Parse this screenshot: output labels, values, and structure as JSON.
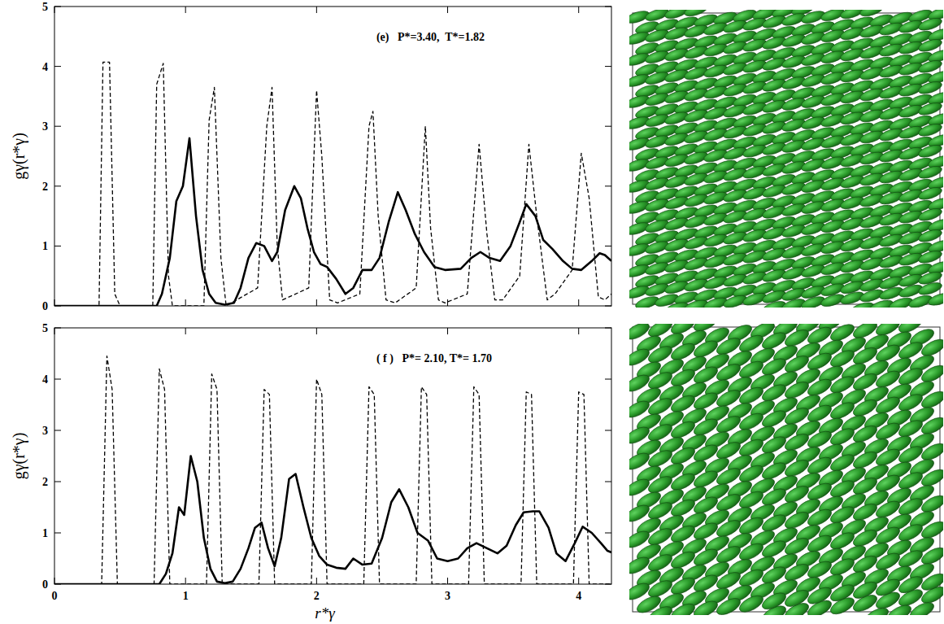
{
  "chart_data": [
    {
      "type": "line",
      "title": "(e)   P*=3.40,  T*=1.82",
      "ylabel": "gγ(r*γ)",
      "xlim": [
        0,
        4.25
      ],
      "ylim": [
        0,
        5
      ],
      "xticks": [
        0,
        1,
        2,
        3,
        4
      ],
      "yticks": [
        0,
        1,
        2,
        3,
        4,
        5
      ],
      "tick_labels": "y",
      "series": [
        {
          "color": "#000000",
          "line_style": "dashed",
          "x": [
            0,
            0.34,
            0.37,
            0.42,
            0.46,
            0.5,
            0.75,
            0.78,
            0.83,
            0.87,
            0.9,
            1.14,
            1.18,
            1.22,
            1.27,
            1.31,
            1.55,
            1.62,
            1.66,
            1.7,
            1.74,
            1.94,
            2.0,
            2.04,
            2.1,
            2.16,
            2.33,
            2.4,
            2.43,
            2.47,
            2.53,
            2.6,
            2.76,
            2.83,
            2.87,
            2.93,
            2.98,
            3.15,
            3.24,
            3.3,
            3.36,
            3.42,
            3.55,
            3.62,
            3.68,
            3.76,
            3.82,
            3.95,
            4.02,
            4.08,
            4.15,
            4.2,
            4.25
          ],
          "values": [
            0,
            0,
            4.07,
            4.07,
            0.2,
            0,
            0,
            3.7,
            4.05,
            0.5,
            0,
            0,
            3.1,
            3.65,
            0.8,
            0,
            0.3,
            3.0,
            3.65,
            1.0,
            0.1,
            0.3,
            3.6,
            2.5,
            0.1,
            0.05,
            0.2,
            3.0,
            3.25,
            1.5,
            0.1,
            0.05,
            0.3,
            3.0,
            1.3,
            0.1,
            0.05,
            0.2,
            2.7,
            1.2,
            0.1,
            0.1,
            0.5,
            2.7,
            1.5,
            0.1,
            0.2,
            0.6,
            2.55,
            1.8,
            0.15,
            0.1,
            0.2
          ]
        },
        {
          "color": "#000000",
          "line_style": "solid",
          "x": [
            0,
            0.78,
            0.82,
            0.88,
            0.93,
            0.98,
            1.03,
            1.08,
            1.13,
            1.18,
            1.23,
            1.3,
            1.37,
            1.42,
            1.48,
            1.54,
            1.6,
            1.66,
            1.7,
            1.76,
            1.83,
            1.88,
            1.93,
            1.98,
            2.03,
            2.08,
            2.15,
            2.22,
            2.28,
            2.35,
            2.42,
            2.48,
            2.55,
            2.62,
            2.68,
            2.75,
            2.82,
            2.9,
            2.98,
            3.1,
            3.18,
            3.25,
            3.32,
            3.4,
            3.48,
            3.55,
            3.6,
            3.67,
            3.73,
            3.8,
            3.88,
            3.95,
            4.02,
            4.1,
            4.16,
            4.2,
            4.25
          ],
          "values": [
            0,
            0,
            0.2,
            0.8,
            1.75,
            2.0,
            2.8,
            1.5,
            0.6,
            0.2,
            0.05,
            0.02,
            0.05,
            0.3,
            0.8,
            1.05,
            1.0,
            0.75,
            0.9,
            1.6,
            2.0,
            1.8,
            1.3,
            0.9,
            0.7,
            0.65,
            0.45,
            0.2,
            0.3,
            0.6,
            0.6,
            0.8,
            1.4,
            1.9,
            1.6,
            1.2,
            0.9,
            0.65,
            0.6,
            0.62,
            0.8,
            0.9,
            0.8,
            0.75,
            1.0,
            1.4,
            1.7,
            1.5,
            1.1,
            0.95,
            0.75,
            0.62,
            0.6,
            0.75,
            0.88,
            0.85,
            0.75
          ]
        }
      ]
    },
    {
      "type": "line",
      "title": "( f )   P*= 2.10, T*= 1.70",
      "xlabel": "r*γ",
      "ylabel": "gγ(r*γ)",
      "xlim": [
        0,
        4.25
      ],
      "ylim": [
        0,
        5
      ],
      "xticks": [
        0,
        1,
        2,
        3,
        4
      ],
      "yticks": [
        0,
        1,
        2,
        3,
        4,
        5
      ],
      "series": [
        {
          "color": "#000000",
          "line_style": "dashed",
          "x": [
            0,
            0.36,
            0.4,
            0.44,
            0.48,
            0.76,
            0.8,
            0.84,
            0.88,
            1.16,
            1.2,
            1.24,
            1.28,
            1.56,
            1.6,
            1.64,
            1.68,
            1.96,
            2.0,
            2.04,
            2.08,
            2.36,
            2.4,
            2.44,
            2.48,
            2.76,
            2.8,
            2.84,
            2.88,
            3.16,
            3.2,
            3.24,
            3.28,
            3.56,
            3.6,
            3.64,
            3.68,
            3.96,
            4.0,
            4.04,
            4.08,
            4.25
          ],
          "values": [
            0,
            0,
            4.45,
            3.8,
            0,
            0,
            4.2,
            3.8,
            0,
            0,
            4.1,
            3.8,
            0,
            0,
            3.8,
            3.7,
            0,
            0,
            4.0,
            3.7,
            0,
            0,
            3.85,
            3.7,
            0,
            0,
            3.85,
            3.7,
            0,
            0,
            3.85,
            3.7,
            0,
            0,
            3.75,
            3.7,
            0,
            0,
            3.75,
            3.7,
            0,
            0
          ]
        },
        {
          "color": "#000000",
          "line_style": "solid",
          "x": [
            0,
            0.8,
            0.85,
            0.9,
            0.95,
            0.99,
            1.04,
            1.09,
            1.14,
            1.19,
            1.24,
            1.3,
            1.36,
            1.42,
            1.48,
            1.53,
            1.58,
            1.63,
            1.68,
            1.73,
            1.79,
            1.84,
            1.9,
            1.96,
            2.02,
            2.08,
            2.15,
            2.22,
            2.28,
            2.35,
            2.42,
            2.5,
            2.57,
            2.63,
            2.7,
            2.77,
            2.85,
            2.92,
            3.0,
            3.08,
            3.15,
            3.22,
            3.3,
            3.38,
            3.45,
            3.52,
            3.58,
            3.65,
            3.7,
            3.77,
            3.83,
            3.9,
            3.97,
            4.03,
            4.1,
            4.17,
            4.22,
            4.25
          ],
          "values": [
            0,
            0,
            0.2,
            0.6,
            1.5,
            1.35,
            2.5,
            2.0,
            0.9,
            0.3,
            0.05,
            0.02,
            0.05,
            0.3,
            0.7,
            1.1,
            1.2,
            0.7,
            0.35,
            0.9,
            2.05,
            2.15,
            1.5,
            0.9,
            0.55,
            0.38,
            0.32,
            0.3,
            0.5,
            0.38,
            0.4,
            0.9,
            1.6,
            1.85,
            1.5,
            1.0,
            0.85,
            0.5,
            0.45,
            0.5,
            0.7,
            0.8,
            0.7,
            0.6,
            0.75,
            1.15,
            1.4,
            1.42,
            1.42,
            1.1,
            0.6,
            0.45,
            0.8,
            1.12,
            1.0,
            0.8,
            0.65,
            0.62
          ]
        }
      ]
    }
  ]
}
